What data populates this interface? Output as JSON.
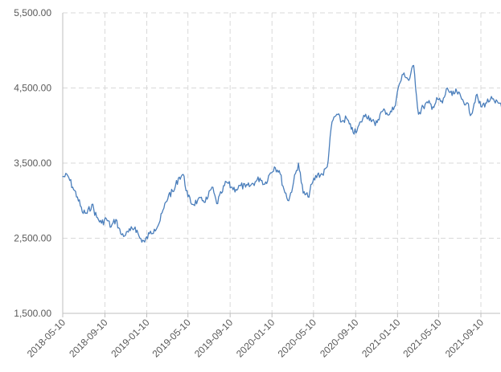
{
  "chart_data": {
    "type": "line",
    "title": "",
    "xlabel": "",
    "ylabel": "",
    "ylim": [
      1500,
      5500
    ],
    "y_ticks": [
      1500,
      2500,
      3500,
      4500,
      5500
    ],
    "y_tick_labels": [
      "1,500.00",
      "2,500.00",
      "3,500.00",
      "4,500.00",
      "5,500.00"
    ],
    "x_tick_labels": [
      "2018-05-10",
      "2018-09-10",
      "2019-01-10",
      "2019-05-10",
      "2019-09-10",
      "2020-01-10",
      "2020-05-10",
      "2020-09-10",
      "2021-01-10",
      "2021-05-10",
      "2021-09-10"
    ],
    "xlim": [
      "2018-05-10",
      "2021-11-15"
    ],
    "grid": true,
    "legend": "none",
    "colors": {
      "series": "#4a7ebb",
      "grid": "#d9d9d9",
      "axis": "#bfbfbf",
      "text": "#595959"
    },
    "series": [
      {
        "x": [
          "2018-05-10",
          "2018-05-25",
          "2018-06-08",
          "2018-06-22",
          "2018-07-06",
          "2018-07-20",
          "2018-08-03",
          "2018-08-17",
          "2018-08-31",
          "2018-09-14",
          "2018-09-28",
          "2018-10-12",
          "2018-10-26",
          "2018-11-09",
          "2018-11-23",
          "2018-12-07",
          "2018-12-21",
          "2019-01-04",
          "2019-01-18",
          "2019-02-01",
          "2019-02-15",
          "2019-03-01",
          "2019-03-15",
          "2019-03-29",
          "2019-04-12",
          "2019-04-26",
          "2019-05-10",
          "2019-05-24",
          "2019-06-07",
          "2019-06-21",
          "2019-07-05",
          "2019-07-19",
          "2019-08-02",
          "2019-08-16",
          "2019-08-30",
          "2019-09-13",
          "2019-09-27",
          "2019-10-11",
          "2019-10-25",
          "2019-11-08",
          "2019-11-22",
          "2019-12-06",
          "2019-12-20",
          "2020-01-03",
          "2020-01-17",
          "2020-01-31",
          "2020-02-14",
          "2020-02-28",
          "2020-03-13",
          "2020-03-27",
          "2020-04-10",
          "2020-04-24",
          "2020-05-08",
          "2020-05-22",
          "2020-06-05",
          "2020-06-19",
          "2020-07-03",
          "2020-07-17",
          "2020-07-31",
          "2020-08-14",
          "2020-08-28",
          "2020-09-11",
          "2020-09-25",
          "2020-10-09",
          "2020-10-23",
          "2020-11-06",
          "2020-11-20",
          "2020-12-04",
          "2020-12-18",
          "2021-01-01",
          "2021-01-15",
          "2021-01-29",
          "2021-02-12",
          "2021-02-26",
          "2021-03-12",
          "2021-03-26",
          "2021-04-09",
          "2021-04-23",
          "2021-05-07",
          "2021-05-21",
          "2021-06-04",
          "2021-06-18",
          "2021-07-02",
          "2021-07-16",
          "2021-07-30",
          "2021-08-13",
          "2021-08-27",
          "2021-09-10",
          "2021-09-24",
          "2021-10-08",
          "2021-10-22",
          "2021-11-05",
          "2021-11-15"
        ],
        "values": [
          3320,
          3330,
          3180,
          3050,
          2850,
          2830,
          2950,
          2780,
          2700,
          2760,
          2650,
          2750,
          2560,
          2540,
          2600,
          2650,
          2500,
          2450,
          2560,
          2620,
          2700,
          2900,
          3080,
          3120,
          3300,
          3350,
          3050,
          2950,
          3000,
          3000,
          3020,
          3180,
          2960,
          3100,
          3250,
          3180,
          3150,
          3200,
          3180,
          3200,
          3250,
          3300,
          3220,
          3350,
          3450,
          3400,
          3150,
          3000,
          3250,
          3500,
          3100,
          3050,
          3250,
          3350,
          3350,
          3450,
          4050,
          4150,
          4050,
          4100,
          3950,
          3900,
          4050,
          4150,
          4100,
          4000,
          4150,
          4200,
          4150,
          4250,
          4550,
          4700,
          4600,
          4800,
          4150,
          4250,
          4300,
          4250,
          4350,
          4300,
          4500,
          4400,
          4450,
          4350,
          4300,
          4150,
          4400,
          4250,
          4300,
          4350,
          4300,
          4300,
          4270
        ]
      }
    ]
  }
}
